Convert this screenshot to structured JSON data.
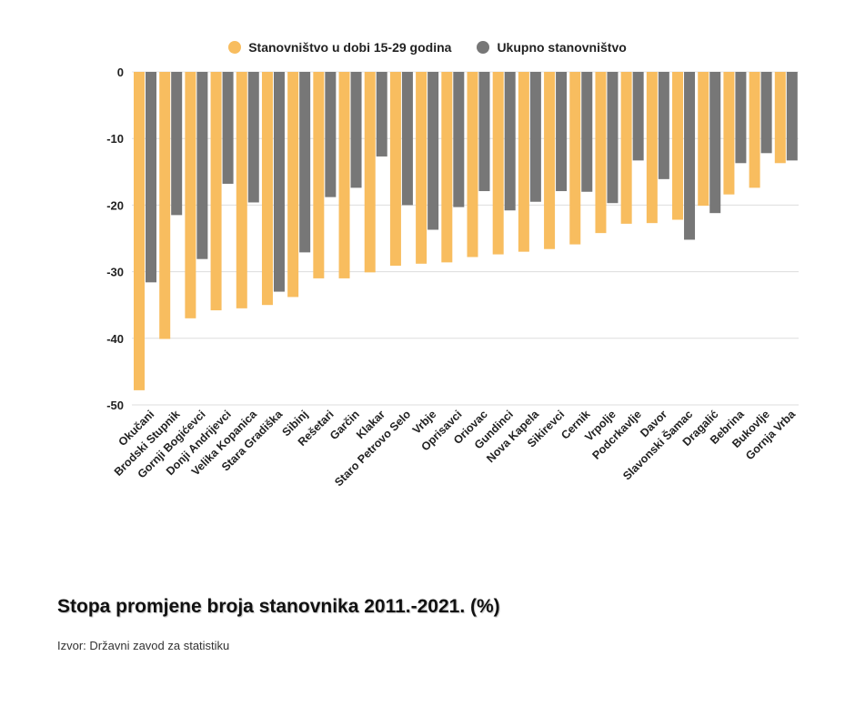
{
  "chart_data": {
    "type": "bar",
    "title": "Stopa promjene broja stanovnika 2011.-2021. (%)",
    "source": "Izvor: Državni zavod za statistiku",
    "xlabel": "",
    "ylabel": "",
    "ylim": [
      -50,
      0
    ],
    "yticks": [
      0,
      -10,
      -20,
      -30,
      -40,
      -50
    ],
    "grid": true,
    "legend_position": "top-center",
    "categories": [
      "Okučani",
      "Brodski Stupnik",
      "Gornji Bogićevci",
      "Donji Andrijevci",
      "Velika Kopanica",
      "Stara Gradiška",
      "Sibinj",
      "Rešetari",
      "Garčin",
      "Klakar",
      "Staro Petrovo Selo",
      "Vrbje",
      "Oprisavci",
      "Oriovac",
      "Gundinci",
      "Nova Kapela",
      "Sikirevci",
      "Cernik",
      "Vrpolje",
      "Podcrkavlje",
      "Davor",
      "Slavonski Šamac",
      "Dragalić",
      "Bebrina",
      "Bukovlje",
      "Gornja Vrba"
    ],
    "series": [
      {
        "name": "Stanovništvo u dobi 15-29 godina",
        "color": "#F8BD5F",
        "values": [
          -47.8,
          -40.1,
          -37.0,
          -35.8,
          -35.5,
          -35.0,
          -33.8,
          -31.0,
          -31.0,
          -30.1,
          -29.1,
          -28.8,
          -28.6,
          -27.8,
          -27.4,
          -27.0,
          -26.6,
          -25.9,
          -24.2,
          -22.8,
          -22.7,
          -22.2,
          -20.1,
          -18.4,
          -17.4,
          -13.7
        ]
      },
      {
        "name": "Ukupno stanovništvo",
        "color": "#777777",
        "values": [
          -31.6,
          -21.5,
          -28.1,
          -16.8,
          -19.6,
          -33.0,
          -27.1,
          -18.8,
          -17.4,
          -12.7,
          -20.0,
          -23.7,
          -20.3,
          -17.9,
          -20.8,
          -19.5,
          -17.9,
          -18.0,
          -19.7,
          -13.3,
          -16.1,
          -25.2,
          -21.2,
          -13.7,
          -12.2,
          -13.3
        ]
      }
    ]
  }
}
